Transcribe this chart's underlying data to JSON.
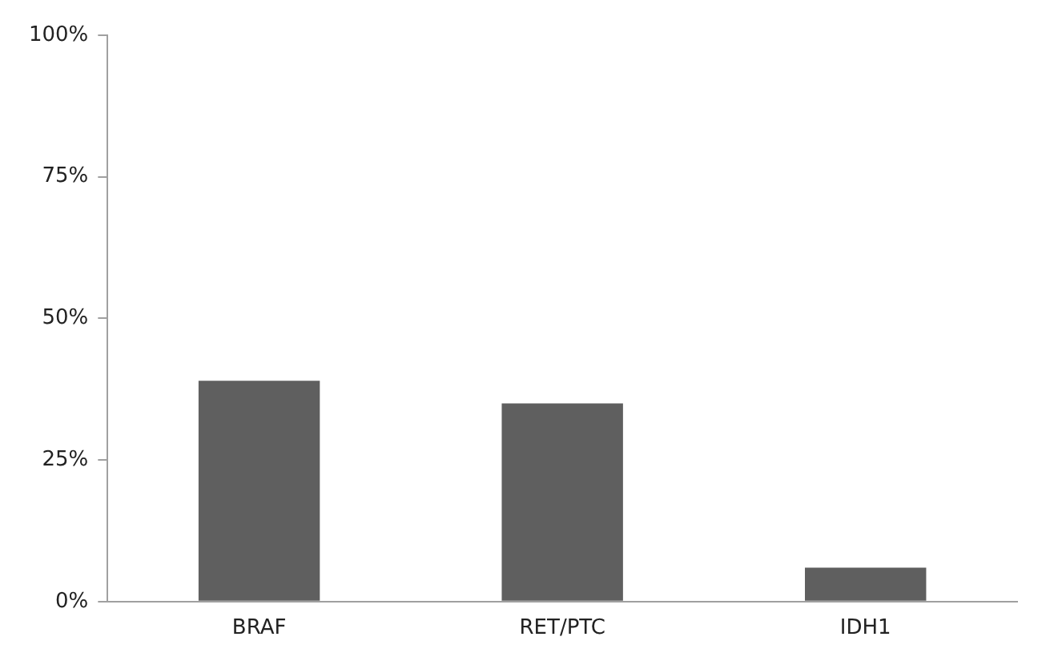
{
  "chart_data": {
    "type": "bar",
    "categories": [
      "BRAF",
      "RET/PTC",
      "IDH1"
    ],
    "values": [
      39,
      35,
      6
    ],
    "color": "#5f5f5f",
    "ylim": [
      0,
      100
    ],
    "yticks": [
      {
        "value": 0,
        "label": "0%"
      },
      {
        "value": 25,
        "label": "25%"
      },
      {
        "value": 50,
        "label": "50%"
      },
      {
        "value": 75,
        "label": "75%"
      },
      {
        "value": 100,
        "label": "100%"
      }
    ],
    "grid": false,
    "legend": false
  }
}
